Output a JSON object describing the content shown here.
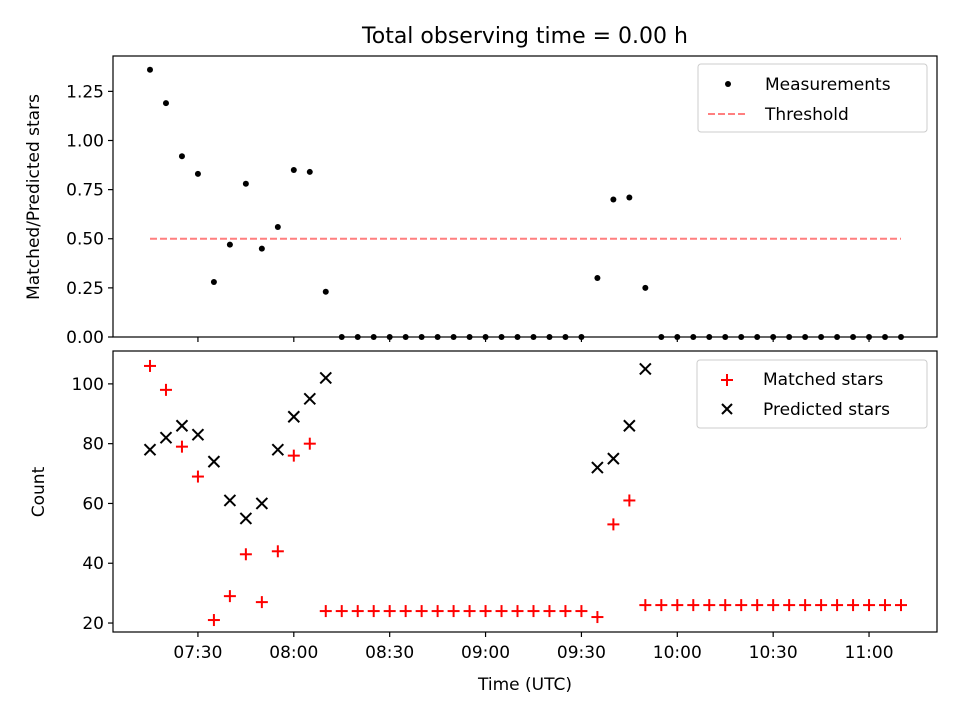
{
  "title": "Total observing time = 0.00 h",
  "xlabel": "Time (UTC)",
  "x_ticks": [
    "07:30",
    "08:00",
    "08:30",
    "09:00",
    "09:30",
    "10:00",
    "10:30",
    "11:00"
  ],
  "colors": {
    "measurements": "#000000",
    "threshold": "#ff7f7f",
    "matched": "#ff0000",
    "predicted": "#000000"
  },
  "chart_data": [
    {
      "type": "scatter",
      "ylabel": "Matched/Predicted stars",
      "ylim": [
        0,
        1.43
      ],
      "y_ticks": [
        "0.00",
        "0.25",
        "0.50",
        "0.75",
        "1.00",
        "1.25"
      ],
      "legend_position": "top-right",
      "grid": false,
      "x": [
        "07:15",
        "07:20",
        "07:25",
        "07:30",
        "07:35",
        "07:40",
        "07:45",
        "07:50",
        "07:55",
        "08:00",
        "08:05",
        "08:10",
        "08:15",
        "08:20",
        "08:25",
        "08:30",
        "08:35",
        "08:40",
        "08:45",
        "08:50",
        "08:55",
        "09:00",
        "09:05",
        "09:10",
        "09:15",
        "09:20",
        "09:25",
        "09:30",
        "09:35",
        "09:40",
        "09:45",
        "09:50",
        "09:55",
        "10:00",
        "10:05",
        "10:10",
        "10:15",
        "10:20",
        "10:25",
        "10:30",
        "10:35",
        "10:40",
        "10:45",
        "10:50",
        "10:55",
        "11:00",
        "11:05",
        "11:10"
      ],
      "series": [
        {
          "name": "Measurements",
          "values": [
            1.36,
            1.19,
            0.92,
            0.83,
            0.28,
            0.47,
            0.78,
            0.45,
            0.56,
            0.85,
            0.84,
            0.23,
            0,
            0,
            0,
            0,
            0,
            0,
            0,
            0,
            0,
            0,
            0,
            0,
            0,
            0,
            0,
            0,
            0.3,
            0.7,
            0.71,
            0.25,
            0,
            0,
            0,
            0,
            0,
            0,
            0,
            0,
            0,
            0,
            0,
            0,
            0,
            0,
            0,
            0
          ]
        },
        {
          "name": "Threshold",
          "x": [
            "07:15",
            "11:10"
          ],
          "values": [
            0.5,
            0.5
          ]
        }
      ]
    },
    {
      "type": "scatter",
      "ylabel": "Count",
      "ylim": [
        17,
        111
      ],
      "y_ticks": [
        "20",
        "40",
        "60",
        "80",
        "100"
      ],
      "legend_position": "top-right",
      "grid": false,
      "series": [
        {
          "name": "Matched stars",
          "x": [
            "07:15",
            "07:20",
            "07:25",
            "07:30",
            "07:35",
            "07:40",
            "07:45",
            "07:50",
            "07:55",
            "08:00",
            "08:05",
            "08:10",
            "08:15",
            "08:20",
            "08:25",
            "08:30",
            "08:35",
            "08:40",
            "08:45",
            "08:50",
            "08:55",
            "09:00",
            "09:05",
            "09:10",
            "09:15",
            "09:20",
            "09:25",
            "09:30",
            "09:35",
            "09:40",
            "09:45",
            "09:50",
            "09:55",
            "10:00",
            "10:05",
            "10:10",
            "10:15",
            "10:20",
            "10:25",
            "10:30",
            "10:35",
            "10:40",
            "10:45",
            "10:50",
            "10:55",
            "11:00",
            "11:05",
            "11:10"
          ],
          "values": [
            106,
            98,
            79,
            69,
            21,
            29,
            43,
            27,
            44,
            76,
            80,
            24,
            24,
            24,
            24,
            24,
            24,
            24,
            24,
            24,
            24,
            24,
            24,
            24,
            24,
            24,
            24,
            24,
            22,
            53,
            61,
            26,
            26,
            26,
            26,
            26,
            26,
            26,
            26,
            26,
            26,
            26,
            26,
            26,
            26,
            26,
            26,
            26
          ]
        },
        {
          "name": "Predicted stars",
          "x": [
            "07:15",
            "07:20",
            "07:25",
            "07:30",
            "07:35",
            "07:40",
            "07:45",
            "07:50",
            "07:55",
            "08:00",
            "08:05",
            "08:10",
            "09:35",
            "09:40",
            "09:45",
            "09:50"
          ],
          "values": [
            78,
            82,
            86,
            83,
            74,
            61,
            55,
            60,
            78,
            89,
            95,
            102,
            72,
            75,
            86,
            105
          ]
        }
      ]
    }
  ]
}
